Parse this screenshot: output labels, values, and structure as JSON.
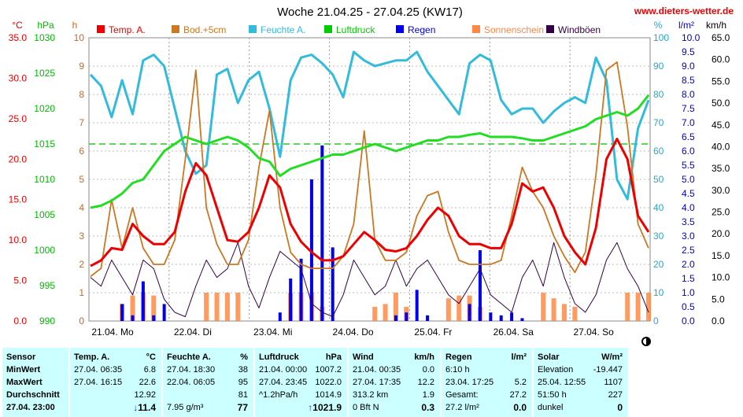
{
  "header": {
    "title": "Woche 21.04.25 - 27.04.25 (KW17)",
    "site": "www.dieters-wetter.de"
  },
  "chart_data": {
    "type": "line",
    "x_ticks": [
      "21.04. Mo",
      "22.04. Di",
      "23.04. Mi",
      "24.04. Do",
      "25.04. Fr",
      "26.04. Sa",
      "27.04. So"
    ],
    "legend": [
      {
        "name": "Temp. A.",
        "color": "#ee0000"
      },
      {
        "name": "Bod.+5cm",
        "color": "#cc7722"
      },
      {
        "name": "Feuchte A.",
        "color": "#33bbdd"
      },
      {
        "name": "Luftdruck",
        "color": "#00cc00"
      },
      {
        "name": "Regen",
        "color": "#0000ee"
      },
      {
        "name": "Sonnenschein",
        "color": "#ff8844"
      },
      {
        "name": "Windböen",
        "color": "#330044"
      }
    ],
    "axes": {
      "temp": {
        "unit": "°C",
        "ticks": [
          "35.0",
          "30.0",
          "25.0",
          "20.0",
          "15.0",
          "10.0",
          "5.0",
          "0.0"
        ],
        "color": "#ee0000"
      },
      "pressure": {
        "unit": "hPa",
        "ticks": [
          "1030",
          "1025",
          "1020",
          "1015",
          "1010",
          "1005",
          "1000",
          "995",
          "990"
        ],
        "color": "#00bb00"
      },
      "sun": {
        "unit": "h",
        "ticks": [
          "10",
          "9",
          "8",
          "7",
          "6",
          "5",
          "4",
          "3",
          "2",
          "1",
          "0"
        ],
        "color": "#cc6622"
      },
      "humidity": {
        "unit": "%",
        "ticks": [
          "100",
          "90",
          "80",
          "70",
          "60",
          "50",
          "40",
          "30",
          "20",
          "10",
          "0"
        ],
        "color": "#22aacc"
      },
      "rain": {
        "unit": "l/m²",
        "ticks": [
          "10.0",
          "9.5",
          "9.0",
          "8.5",
          "8.0",
          "7.5",
          "7.0",
          "6.5",
          "6.0",
          "5.5",
          "5.0",
          "4.5",
          "4.0",
          "3.5",
          "3.0",
          "2.5",
          "2.0",
          "1.5",
          "1.0",
          "0.5",
          "0.0"
        ],
        "color": "#0000cc"
      },
      "wind": {
        "unit": "km/h",
        "ticks": [
          "65.0",
          "60.0",
          "55.0",
          "50.0",
          "45.0",
          "40.0",
          "35.0",
          "30.0",
          "25.0",
          "20.0",
          "15.0",
          "10.0",
          "5.0",
          "0.0"
        ],
        "color": "#000000"
      }
    },
    "reference_line_pressure": 1015,
    "series": [
      {
        "name": "Temp. A.",
        "unit": "°C",
        "values": [
          6.8,
          7.5,
          9.0,
          8.8,
          12.0,
          10.5,
          9.5,
          9.5,
          11.0,
          16.0,
          19.5,
          18.0,
          14.0,
          10.0,
          9.8,
          11.0,
          14.0,
          18.0,
          16.5,
          12.0,
          9.8,
          8.5,
          7.5,
          7.5,
          8.0,
          9.5,
          11.0,
          10.0,
          8.8,
          8.6,
          9.0,
          10.5,
          12.5,
          14.0,
          13.0,
          10.5,
          9.5,
          9.5,
          9.0,
          9.0,
          12.0,
          17.0,
          16.0,
          16.5,
          14.0,
          10.5,
          8.5,
          7.0,
          11.5,
          20.0,
          22.5,
          20.0,
          13.0,
          11.0
        ]
      },
      {
        "name": "Bod.+5cm",
        "unit": "°C",
        "values": [
          5.5,
          6.5,
          15.0,
          9.0,
          14.0,
          9.0,
          7.0,
          7.0,
          10.0,
          20.0,
          31.0,
          14.0,
          9.5,
          7.0,
          7.0,
          10.0,
          19.0,
          26.0,
          14.0,
          8.5,
          7.0,
          6.5,
          6.5,
          6.5,
          8.0,
          12.0,
          23.5,
          10.0,
          7.5,
          7.5,
          8.5,
          13.0,
          15.5,
          16.0,
          11.0,
          7.5,
          7.0,
          7.0,
          7.0,
          7.5,
          13.0,
          19.0,
          16.0,
          14.0,
          10.5,
          8.0,
          6.0,
          8.5,
          18.0,
          31.0,
          32.0,
          24.0,
          12.0,
          9.0
        ]
      },
      {
        "name": "Feuchte A.",
        "unit": "%",
        "values": [
          87,
          83,
          72,
          85,
          73,
          92,
          94,
          90,
          75,
          60,
          52,
          55,
          87,
          89,
          77,
          85,
          88,
          75,
          58,
          85,
          93,
          94,
          91,
          87,
          79,
          95,
          92,
          90,
          91,
          92,
          92,
          95,
          88,
          83,
          78,
          73,
          91,
          94,
          92,
          78,
          73,
          75,
          75,
          70,
          74,
          77,
          79,
          77,
          93,
          85,
          50,
          43,
          68,
          78
        ]
      },
      {
        "name": "Luftdruck",
        "unit": "hPa",
        "values": [
          1006.0,
          1006.3,
          1007.0,
          1008.0,
          1009.5,
          1010.0,
          1012.0,
          1014.0,
          1015.0,
          1016.0,
          1015.5,
          1015.0,
          1015.5,
          1016.0,
          1015.5,
          1014.5,
          1013.0,
          1012.5,
          1010.5,
          1011.5,
          1012.0,
          1012.5,
          1013.0,
          1013.5,
          1013.5,
          1014.0,
          1014.5,
          1015.0,
          1014.5,
          1014.0,
          1014.5,
          1015.0,
          1015.5,
          1015.5,
          1016.0,
          1016.0,
          1016.3,
          1016.5,
          1016.0,
          1016.0,
          1016.0,
          1015.8,
          1015.5,
          1015.5,
          1016.0,
          1016.5,
          1017.0,
          1017.5,
          1018.5,
          1019.0,
          1019.5,
          1019.0,
          1020.0,
          1021.9
        ]
      },
      {
        "name": "Regen",
        "unit": "l/m²",
        "values": [
          0,
          0,
          0,
          0.6,
          0.2,
          1.4,
          0.2,
          0.6,
          0,
          0,
          0,
          0,
          0,
          0,
          0,
          0,
          0,
          0,
          0.3,
          1.5,
          2.2,
          5.0,
          6.2,
          2.6,
          0,
          0,
          0,
          0,
          0,
          0.2,
          0.3,
          1.1,
          0.2,
          0,
          0,
          0,
          0.6,
          2.5,
          0.3,
          0.2,
          0.3,
          0.1,
          0,
          0,
          0,
          0,
          0,
          0,
          0,
          0,
          0,
          0,
          0,
          0
        ]
      },
      {
        "name": "Sonnenschein",
        "unit": "h",
        "values": [
          0,
          0,
          0,
          0.6,
          0.9,
          1.0,
          0.9,
          0,
          0,
          0,
          0,
          1.0,
          1.0,
          1.0,
          1.0,
          0,
          0,
          0,
          0,
          1.0,
          1.0,
          1.0,
          0.5,
          0,
          0,
          0,
          0,
          0.5,
          0.6,
          1.0,
          0.5,
          0,
          0,
          0,
          0.8,
          0.9,
          0.9,
          0.5,
          0,
          0,
          0,
          0,
          0,
          1.0,
          0.8,
          0.6,
          0.5,
          0,
          0,
          0,
          0,
          1.0,
          1.0,
          1.0
        ]
      },
      {
        "name": "Windböen",
        "unit": "km/h",
        "values": [
          10,
          8,
          14,
          10,
          6,
          14,
          12,
          5,
          2,
          1,
          8,
          14,
          10,
          12,
          18,
          8,
          3,
          10,
          16,
          14,
          12,
          4,
          2,
          1,
          6,
          14,
          10,
          6,
          8,
          14,
          8,
          12,
          14,
          10,
          6,
          4,
          8,
          12,
          6,
          4,
          2,
          10,
          14,
          8,
          18,
          10,
          4,
          2,
          6,
          14,
          18,
          12,
          8,
          2
        ]
      }
    ]
  },
  "table": {
    "row_labels": [
      "Sensor",
      "MinWert",
      "MaxWert",
      "Durchschnitt",
      "27.04. 23:00"
    ],
    "sections": [
      {
        "header": [
          "Temp. A.",
          "°C"
        ],
        "rows": [
          [
            "27.04. 06:35",
            "6.8"
          ],
          [
            "27.04. 16:15",
            "22.6"
          ],
          [
            "",
            "12.92"
          ]
        ],
        "current_trend": "↓",
        "current": "11.4"
      },
      {
        "header": [
          "Feuchte A.",
          "%"
        ],
        "rows": [
          [
            "27.04. 18:30",
            "38"
          ],
          [
            "22.04. 06:05",
            "95"
          ],
          [
            "",
            "81"
          ]
        ],
        "extra": "7.95 g/m³",
        "current": "77"
      },
      {
        "header": [
          "Luftdruck",
          "hPa"
        ],
        "rows": [
          [
            "21.04. 00:00",
            "1007.2"
          ],
          [
            "27.04. 23:45",
            "1022.0"
          ],
          [
            "^1.2hPa/h",
            "1014.9"
          ]
        ],
        "current_trend": "↑",
        "current": "1021.9"
      },
      {
        "header": [
          "Wind",
          "km/h"
        ],
        "rows": [
          [
            "21.04. 00:35",
            "0.0"
          ],
          [
            "27.04. 17:35",
            "12.2"
          ],
          [
            "313.2 km",
            "1.9"
          ]
        ],
        "extra": "0 Bft N",
        "current": "0.3"
      },
      {
        "header": [
          "Regen",
          "l/m²"
        ],
        "rows": [
          [
            "6:10 h",
            ""
          ],
          [
            "23.04. 17:25",
            "5.2"
          ],
          [
            "Gesamt:",
            "27.2"
          ]
        ],
        "extra": "27.2 l/m²",
        "current": "0.0"
      },
      {
        "header": [
          "Solar",
          "W/m²"
        ],
        "rows": [
          [
            "Elevation",
            "-19.447"
          ],
          [
            "25.04. 12:55",
            "1107"
          ],
          [
            "51:50 h",
            "227"
          ]
        ],
        "extra": "dunkel",
        "current": "0"
      }
    ]
  }
}
